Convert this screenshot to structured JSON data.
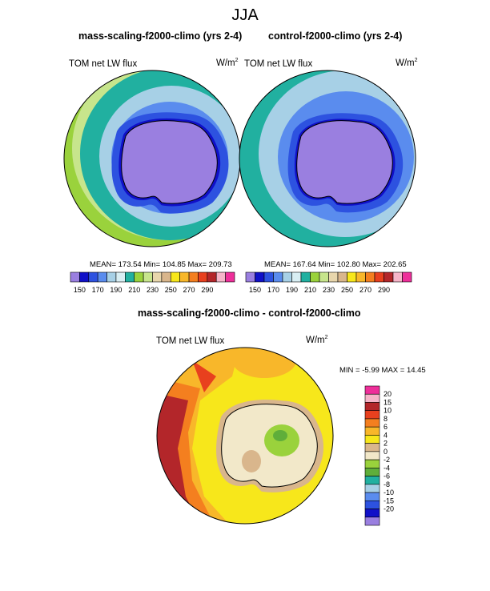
{
  "figure": {
    "title": "JJA"
  },
  "top_panels": [
    {
      "title": "mass-scaling-f2000-climo (yrs 2-4)",
      "variable": "TOM net LW flux",
      "units": "W/m",
      "units_exp": "2",
      "stats": "MEAN= 173.54  Min= 104.85  Max= 209.73"
    },
    {
      "title": "control-f2000-climo (yrs 2-4)",
      "variable": "TOM net LW flux",
      "units": "W/m",
      "units_exp": "2",
      "stats": "MEAN= 167.64  Min= 102.80  Max= 202.65"
    }
  ],
  "top_colorbar": {
    "colors": [
      "#9a7fe0",
      "#1010c8",
      "#2d52e0",
      "#5a8cee",
      "#a7d0e6",
      "#d8eef3",
      "#21b0a0",
      "#9ad23c",
      "#c7e58c",
      "#e8d6ac",
      "#d9b68c",
      "#f7e71b",
      "#f8b72a",
      "#f47f1f",
      "#e8401e",
      "#b3262a",
      "#f6b5c9",
      "#ee2f9a"
    ],
    "labels": [
      "150",
      "170",
      "190",
      "210",
      "230",
      "250",
      "270",
      "290"
    ]
  },
  "diff_panel": {
    "title": "mass-scaling-f2000-climo - control-f2000-climo",
    "variable": "TOM net LW flux",
    "units": "W/m",
    "units_exp": "2",
    "stats": "MIN =  -5.99 MAX =  14.45"
  },
  "diff_colorbar": {
    "colors": [
      "#ee2f9a",
      "#f6b5c9",
      "#b3262a",
      "#e8401e",
      "#f47f1f",
      "#f8b72a",
      "#f7e71b",
      "#d9b68c",
      "#f2e8c9",
      "#9ad23c",
      "#5fae3a",
      "#21b0a0",
      "#a7d0e6",
      "#5a8cee",
      "#2d52e0",
      "#1010c8",
      "#9a7fe0"
    ],
    "labels": [
      "20",
      "15",
      "10",
      "8",
      "6",
      "4",
      "2",
      "0",
      "-2",
      "-4",
      "-6",
      "-8",
      "-10",
      "-15",
      "-20"
    ]
  }
}
